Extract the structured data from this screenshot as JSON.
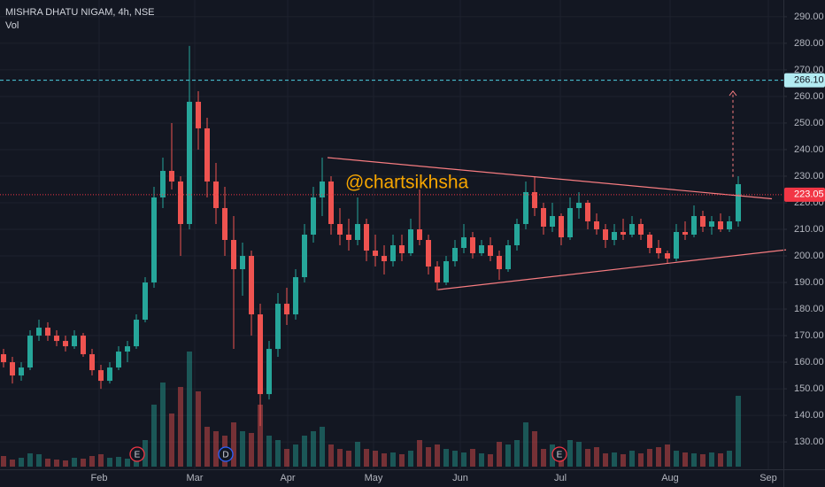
{
  "chart_data": {
    "type": "candlestick",
    "title": "MISHRA DHATU NIGAM, 4h, NSE",
    "volume_label": "Vol",
    "watermark": "@chartsikhsha",
    "up_color": "#26a69a",
    "down_color": "#ef5350",
    "grid": true,
    "ylim": [
      119.7,
      296.3
    ],
    "yticks": [
      {
        "value": 130,
        "label": "130.00"
      },
      {
        "value": 140,
        "label": "140.00"
      },
      {
        "value": 150,
        "label": "150.00"
      },
      {
        "value": 160,
        "label": "160.00"
      },
      {
        "value": 170,
        "label": "170.00"
      },
      {
        "value": 180,
        "label": "180.00"
      },
      {
        "value": 190,
        "label": "190.00"
      },
      {
        "value": 200,
        "label": "200.00"
      },
      {
        "value": 210,
        "label": "210.00"
      },
      {
        "value": 220,
        "label": "220.00"
      },
      {
        "value": 230,
        "label": "230.00"
      },
      {
        "value": 240,
        "label": "240.00"
      },
      {
        "value": 250,
        "label": "250.00"
      },
      {
        "value": 260,
        "label": "260.00"
      },
      {
        "value": 270,
        "label": "270.00"
      },
      {
        "value": 280,
        "label": "280.00"
      },
      {
        "value": 290,
        "label": "290.00"
      }
    ],
    "xlim": [
      -0.4,
      88.1
    ],
    "xticks": [
      {
        "value": 10.8,
        "label": "Feb"
      },
      {
        "value": 21.6,
        "label": "Mar"
      },
      {
        "value": 32.1,
        "label": "Apr"
      },
      {
        "value": 41.8,
        "label": "May"
      },
      {
        "value": 51.6,
        "label": "Jun"
      },
      {
        "value": 62.9,
        "label": "Jul"
      },
      {
        "value": 75.3,
        "label": "Aug"
      },
      {
        "value": 86.4,
        "label": "Sep"
      }
    ],
    "open": [
      163,
      160,
      155,
      158,
      170,
      173,
      170,
      168,
      166,
      170,
      163,
      157,
      153,
      158,
      164,
      166,
      176,
      190,
      222,
      232,
      228,
      212,
      258,
      248,
      228,
      218,
      206,
      195,
      200,
      178,
      148,
      165,
      182,
      178,
      192,
      208,
      222,
      228,
      212,
      208,
      206,
      212,
      202,
      200,
      198,
      204,
      201,
      210,
      206,
      196,
      190,
      198,
      203,
      207,
      201,
      204,
      200,
      195,
      204,
      212,
      224,
      218,
      211,
      215,
      207,
      218,
      220,
      213,
      210,
      206,
      209,
      208,
      212,
      208,
      203,
      201,
      199,
      209,
      208,
      215,
      211,
      213,
      210,
      213
    ],
    "high": [
      165,
      162,
      160,
      172,
      176,
      175,
      172,
      170,
      172,
      171,
      165,
      159,
      160,
      166,
      168,
      178,
      192,
      226,
      237,
      250,
      230,
      279,
      262,
      252,
      235,
      226,
      215,
      205,
      202,
      182,
      168,
      186,
      188,
      195,
      212,
      226,
      237,
      230,
      218,
      214,
      222,
      214,
      208,
      204,
      208,
      208,
      214,
      225,
      208,
      198,
      200,
      206,
      212,
      209,
      206,
      207,
      202,
      206,
      214,
      228,
      230,
      220,
      220,
      216,
      222,
      224,
      221,
      216,
      212,
      212,
      214,
      215,
      214,
      209,
      206,
      202,
      212,
      213,
      219,
      217,
      215,
      216,
      215,
      230
    ],
    "low": [
      158,
      152,
      153,
      157,
      168,
      168,
      166,
      164,
      165,
      162,
      155,
      150,
      152,
      157,
      160,
      165,
      175,
      188,
      218,
      225,
      200,
      210,
      240,
      222,
      212,
      200,
      165,
      185,
      170,
      136,
      146,
      162,
      174,
      176,
      190,
      205,
      215,
      208,
      204,
      202,
      204,
      198,
      196,
      193,
      196,
      198,
      200,
      204,
      193,
      187,
      189,
      196,
      201,
      199,
      200,
      198,
      191,
      194,
      202,
      210,
      215,
      208,
      209,
      204,
      206,
      214,
      210,
      208,
      203,
      204,
      206,
      207,
      206,
      201,
      199,
      197,
      198,
      206,
      207,
      209,
      208,
      209,
      209,
      211
    ],
    "close": [
      160,
      155,
      158,
      170,
      173,
      170,
      168,
      166,
      170,
      163,
      157,
      153,
      158,
      164,
      166,
      176,
      190,
      222,
      232,
      228,
      212,
      258,
      248,
      228,
      218,
      206,
      195,
      200,
      178,
      148,
      165,
      182,
      178,
      192,
      208,
      222,
      228,
      212,
      208,
      206,
      212,
      202,
      200,
      198,
      204,
      201,
      210,
      206,
      196,
      190,
      198,
      203,
      207,
      201,
      204,
      200,
      195,
      204,
      212,
      224,
      218,
      211,
      215,
      207,
      218,
      220,
      213,
      210,
      206,
      209,
      208,
      212,
      208,
      203,
      201,
      199,
      209,
      208,
      215,
      211,
      213,
      210,
      213,
      227
    ],
    "volume": [
      12,
      8,
      10,
      15,
      14,
      9,
      8,
      7,
      10,
      9,
      12,
      14,
      10,
      11,
      9,
      18,
      30,
      70,
      95,
      60,
      90,
      130,
      85,
      45,
      40,
      35,
      50,
      40,
      38,
      70,
      35,
      30,
      20,
      25,
      35,
      40,
      45,
      25,
      20,
      18,
      28,
      20,
      18,
      15,
      16,
      14,
      18,
      30,
      22,
      25,
      20,
      18,
      16,
      20,
      15,
      14,
      28,
      25,
      30,
      50,
      40,
      20,
      25,
      18,
      30,
      28,
      20,
      22,
      15,
      16,
      14,
      18,
      15,
      20,
      22,
      25,
      18,
      16,
      15,
      14,
      16,
      15,
      18,
      80
    ],
    "vlim": [
      0,
      140
    ],
    "price_lines": [
      {
        "value": 266.1,
        "label": "266.10",
        "color": "#4dd0e1",
        "label_fill": "#b2ebf2",
        "label_color": "#131722"
      },
      {
        "value": 223.05,
        "label": "223.05",
        "color": "#f23645",
        "label_fill": "#f23645",
        "label_color": "#ffffff"
      }
    ],
    "trendlines": [
      {
        "x": [
          36.6,
          86.8
        ],
        "y": [
          237,
          221.5
        ],
        "color": "#f77c80"
      },
      {
        "x": [
          49.1,
          88.4
        ],
        "y": [
          187.3,
          202.3
        ],
        "color": "#f77c80"
      }
    ],
    "arrow": {
      "x": 82.4,
      "y": [
        229.7,
        262
      ],
      "color": "#f77c80"
    },
    "events": [
      {
        "label": "E",
        "x": 15.1,
        "color": "#f23645"
      },
      {
        "label": "D",
        "x": 25.1,
        "color": "#2962ff"
      },
      {
        "label": "E",
        "x": 62.8,
        "color": "#f23645"
      }
    ]
  }
}
